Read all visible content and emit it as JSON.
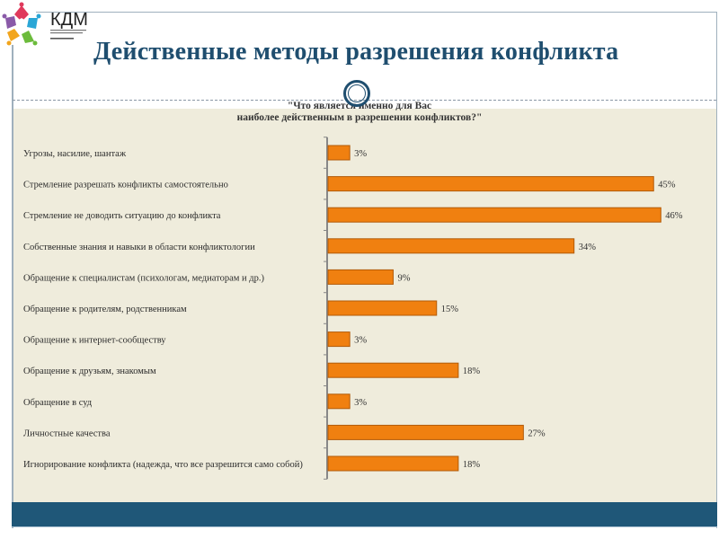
{
  "logo": {
    "text": "КДМ",
    "colors": [
      "#e03a5c",
      "#2aa6d6",
      "#6cbb3c",
      "#f2a51d",
      "#8a5aa8"
    ]
  },
  "header": {
    "title": "Действенные методы разрешения конфликта"
  },
  "colors": {
    "title": "#1f4e6f",
    "panel": "#efecdc",
    "band": "#1f5778",
    "bar": "#f08010",
    "bar_edge": "#b25a08"
  },
  "chart_data": {
    "type": "bar",
    "orientation": "horizontal",
    "title_lines": [
      "\"Что является именно для Вас",
      "наиболее действенным в разрешении конфликтов?\""
    ],
    "categories": [
      "Угрозы, насилие, шантаж",
      "Стремление разрешать конфликты самостоятельно",
      "Стремление не доводить ситуацию до конфликта",
      "Собственные знания и навыки в области конфликтологии",
      "Обращение к специалистам (психологам, медиаторам и др.)",
      "Обращение к родителям, родственникам",
      "Обращение к интернет-сообществу",
      "Обращение к друзьям, знакомым",
      "Обращение в суд",
      "Личностные качества",
      "Игнорирование конфликта (надежда, что все разрешится само собой)"
    ],
    "values": [
      3,
      45,
      46,
      34,
      9,
      15,
      3,
      18,
      3,
      27,
      18
    ],
    "value_labels": [
      "3%",
      "45%",
      "46%",
      "34%",
      "9%",
      "15%",
      "3%",
      "18%",
      "3%",
      "27%",
      "18%"
    ],
    "unit": "%",
    "xlim": [
      0,
      50
    ],
    "grid": false,
    "legend": "none"
  }
}
